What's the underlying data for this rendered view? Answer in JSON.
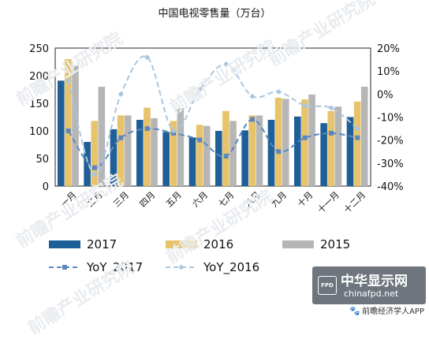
{
  "chart_data": {
    "type": "bar",
    "title": "中国电视零售量（万台）",
    "categories": [
      "一月",
      "二月",
      "三月",
      "四月",
      "五月",
      "六月",
      "七月",
      "八月",
      "九月",
      "十月",
      "十一月",
      "十二月"
    ],
    "bar_series": [
      {
        "name": "2017",
        "color": "#1f5f97",
        "values": [
          191,
          80,
          103,
          120,
          98,
          88,
          100,
          101,
          120,
          126,
          114,
          125
        ]
      },
      {
        "name": "2016",
        "color": "#e7c46b",
        "values": [
          230,
          118,
          128,
          142,
          118,
          111,
          136,
          128,
          160,
          157,
          136,
          153
        ]
      },
      {
        "name": "2015",
        "color": "#b6b6b6",
        "values": [
          218,
          180,
          128,
          123,
          141,
          109,
          118,
          128,
          158,
          166,
          144,
          180
        ]
      }
    ],
    "line_series": [
      {
        "name": "YoY_2017",
        "color": "#5b87c0",
        "style": "dashed",
        "marker": "square",
        "values": [
          -16,
          -32,
          -19,
          -15,
          -17,
          -20,
          -27,
          -11,
          -25,
          -19,
          -17,
          -19
        ]
      },
      {
        "name": "YoY_2016",
        "color": "#a9c6e0",
        "style": "dashed",
        "marker": "diamond",
        "values": [
          6,
          -35,
          0,
          16,
          -16,
          2,
          13,
          -1,
          1,
          -5,
          -6,
          -15
        ]
      }
    ],
    "y_left": {
      "min": 0,
      "max": 250,
      "step": 50
    },
    "y_right": {
      "min": -40,
      "max": 20,
      "step": 10,
      "unit": "%"
    },
    "xlabel": "",
    "ylabel": "",
    "legend_position": "bottom",
    "grid": false
  },
  "watermark": {
    "text": "前瞻产业研究院"
  },
  "source_badge": {
    "name": "中华显示网",
    "url": "chinafpd.net",
    "logo_text": "FPD"
  },
  "app_credit": "前瞻经济学人APP"
}
